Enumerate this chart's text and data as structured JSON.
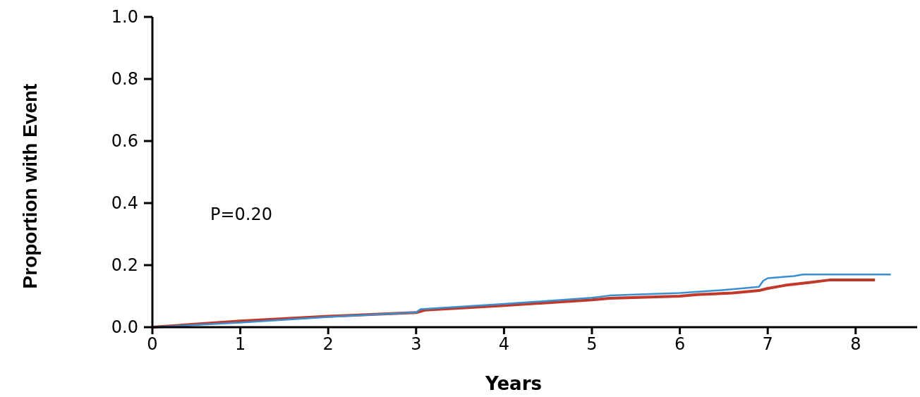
{
  "chart_data": {
    "type": "line",
    "xlabel": "Years",
    "ylabel": "Proportion with Event",
    "annotations": [
      "P=0.20"
    ],
    "xlim": [
      0,
      8.7
    ],
    "xticks": [
      0,
      1,
      2,
      3,
      4,
      5,
      6,
      7,
      8
    ],
    "ylim": [
      0,
      1
    ],
    "yticks": [
      {
        "value": 0,
        "label": "0.0"
      },
      {
        "value": 0.2,
        "label": "0.2"
      },
      {
        "value": 0.4,
        "label": "0.4"
      },
      {
        "value": 0.6,
        "label": "0.6"
      },
      {
        "value": 0.8,
        "label": "0.8"
      },
      {
        "value": 1,
        "label": "1.0"
      }
    ],
    "grid": false,
    "series": [
      {
        "color": "#c0392b",
        "x": [
          0,
          1,
          2,
          3,
          3.1,
          4,
          5,
          5.2,
          6,
          6.2,
          6.6,
          6.9,
          7,
          7.2,
          7.5,
          7.7,
          8.22
        ],
        "values": [
          0,
          0.02,
          0.035,
          0.047,
          0.055,
          0.07,
          0.088,
          0.093,
          0.1,
          0.105,
          0.11,
          0.118,
          0.125,
          0.135,
          0.145,
          0.152,
          0.152
        ]
      },
      {
        "color": "#3a8fd0",
        "x": [
          0,
          1,
          2,
          3,
          3.05,
          4,
          5,
          5.2,
          6,
          6.5,
          6.9,
          6.95,
          7,
          7.3,
          7.4,
          8.4
        ],
        "values": [
          0,
          0.015,
          0.033,
          0.048,
          0.058,
          0.075,
          0.095,
          0.102,
          0.11,
          0.12,
          0.13,
          0.15,
          0.158,
          0.165,
          0.17,
          0.17
        ]
      }
    ]
  }
}
